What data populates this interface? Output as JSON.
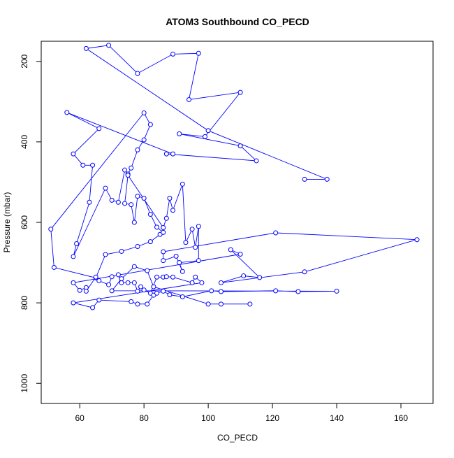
{
  "chart_data": {
    "type": "line",
    "title": "ATOM3 Southbound CO_PECD",
    "xlabel": "CO_PECD",
    "ylabel": "Pressure (mbar)",
    "xlim": [
      48,
      170
    ],
    "ylim": [
      1050,
      150
    ],
    "y_axis_inverted": true,
    "x_ticks": [
      60,
      80,
      100,
      120,
      140,
      160
    ],
    "y_ticks": [
      200,
      400,
      600,
      800,
      1000
    ],
    "grid": false,
    "legend": "none",
    "markers": "open-circle",
    "series": [
      {
        "color": "#0000ff",
        "points": [
          [
            130,
            493
          ],
          [
            137,
            493
          ],
          [
            100,
            372
          ],
          [
            62,
            168
          ],
          [
            69,
            160
          ],
          [
            78,
            230
          ],
          [
            89,
            182
          ],
          [
            97,
            180
          ],
          [
            94,
            295
          ],
          [
            110,
            277
          ],
          [
            99,
            387
          ],
          [
            91,
            380
          ],
          [
            110,
            410
          ],
          [
            115,
            447
          ],
          [
            87,
            430
          ],
          [
            89,
            430
          ],
          [
            56,
            327
          ],
          [
            66,
            367
          ],
          [
            58,
            430
          ],
          [
            61,
            458
          ],
          [
            64,
            458
          ],
          [
            63,
            550
          ],
          [
            59,
            653
          ],
          [
            58,
            685
          ],
          [
            68,
            515
          ],
          [
            70,
            545
          ],
          [
            72,
            550
          ],
          [
            74,
            470
          ],
          [
            75,
            480
          ],
          [
            76,
            465
          ],
          [
            78,
            420
          ],
          [
            80,
            395
          ],
          [
            82,
            357
          ],
          [
            80,
            328
          ],
          [
            51,
            617
          ],
          [
            52,
            712
          ],
          [
            65,
            738
          ],
          [
            68,
            680
          ],
          [
            73,
            672
          ],
          [
            78,
            660
          ],
          [
            82,
            648
          ],
          [
            85,
            630
          ],
          [
            86,
            625
          ],
          [
            84,
            612
          ],
          [
            82,
            580
          ],
          [
            80,
            540
          ],
          [
            78,
            535
          ],
          [
            77,
            600
          ],
          [
            76,
            556
          ],
          [
            74,
            553
          ],
          [
            75,
            483
          ],
          [
            86,
            613
          ],
          [
            87,
            590
          ],
          [
            88,
            540
          ],
          [
            89,
            570
          ],
          [
            92,
            505
          ],
          [
            93,
            650
          ],
          [
            95,
            617
          ],
          [
            96,
            662
          ],
          [
            97,
            610
          ],
          [
            97,
            695
          ],
          [
            91,
            700
          ],
          [
            92,
            722
          ],
          [
            90,
            684
          ],
          [
            86,
            695
          ],
          [
            86,
            673
          ],
          [
            121,
            626
          ],
          [
            165,
            643
          ],
          [
            130,
            723
          ],
          [
            104,
            750
          ],
          [
            111,
            733
          ],
          [
            116,
            737
          ],
          [
            107,
            668
          ],
          [
            110,
            679
          ],
          [
            58,
            750
          ],
          [
            60,
            769
          ],
          [
            62,
            762
          ],
          [
            62,
            771
          ],
          [
            65,
            736
          ],
          [
            66,
            745
          ],
          [
            69,
            755
          ],
          [
            70,
            735
          ],
          [
            72,
            730
          ],
          [
            73,
            750
          ],
          [
            75,
            750
          ],
          [
            77,
            750
          ],
          [
            78,
            771
          ],
          [
            79,
            760
          ],
          [
            80,
            768
          ],
          [
            82,
            776
          ],
          [
            84,
            736
          ],
          [
            86,
            736
          ],
          [
            87,
            735
          ],
          [
            89,
            736
          ],
          [
            95,
            750
          ],
          [
            96,
            736
          ],
          [
            98,
            750
          ],
          [
            58,
            800
          ],
          [
            64,
            812
          ],
          [
            66,
            793
          ],
          [
            76,
            797
          ],
          [
            78,
            803
          ],
          [
            81,
            803
          ],
          [
            83,
            781
          ],
          [
            84,
            776
          ],
          [
            86,
            771
          ],
          [
            88,
            780
          ],
          [
            92,
            785
          ],
          [
            101,
            770
          ],
          [
            104,
            772
          ],
          [
            121,
            770
          ],
          [
            128,
            772
          ],
          [
            140,
            771
          ],
          [
            70,
            770
          ],
          [
            73,
            740
          ],
          [
            77,
            710
          ],
          [
            81,
            720
          ],
          [
            83,
            760
          ],
          [
            100,
            803
          ],
          [
            104,
            803
          ],
          [
            113,
            803
          ]
        ]
      }
    ]
  }
}
